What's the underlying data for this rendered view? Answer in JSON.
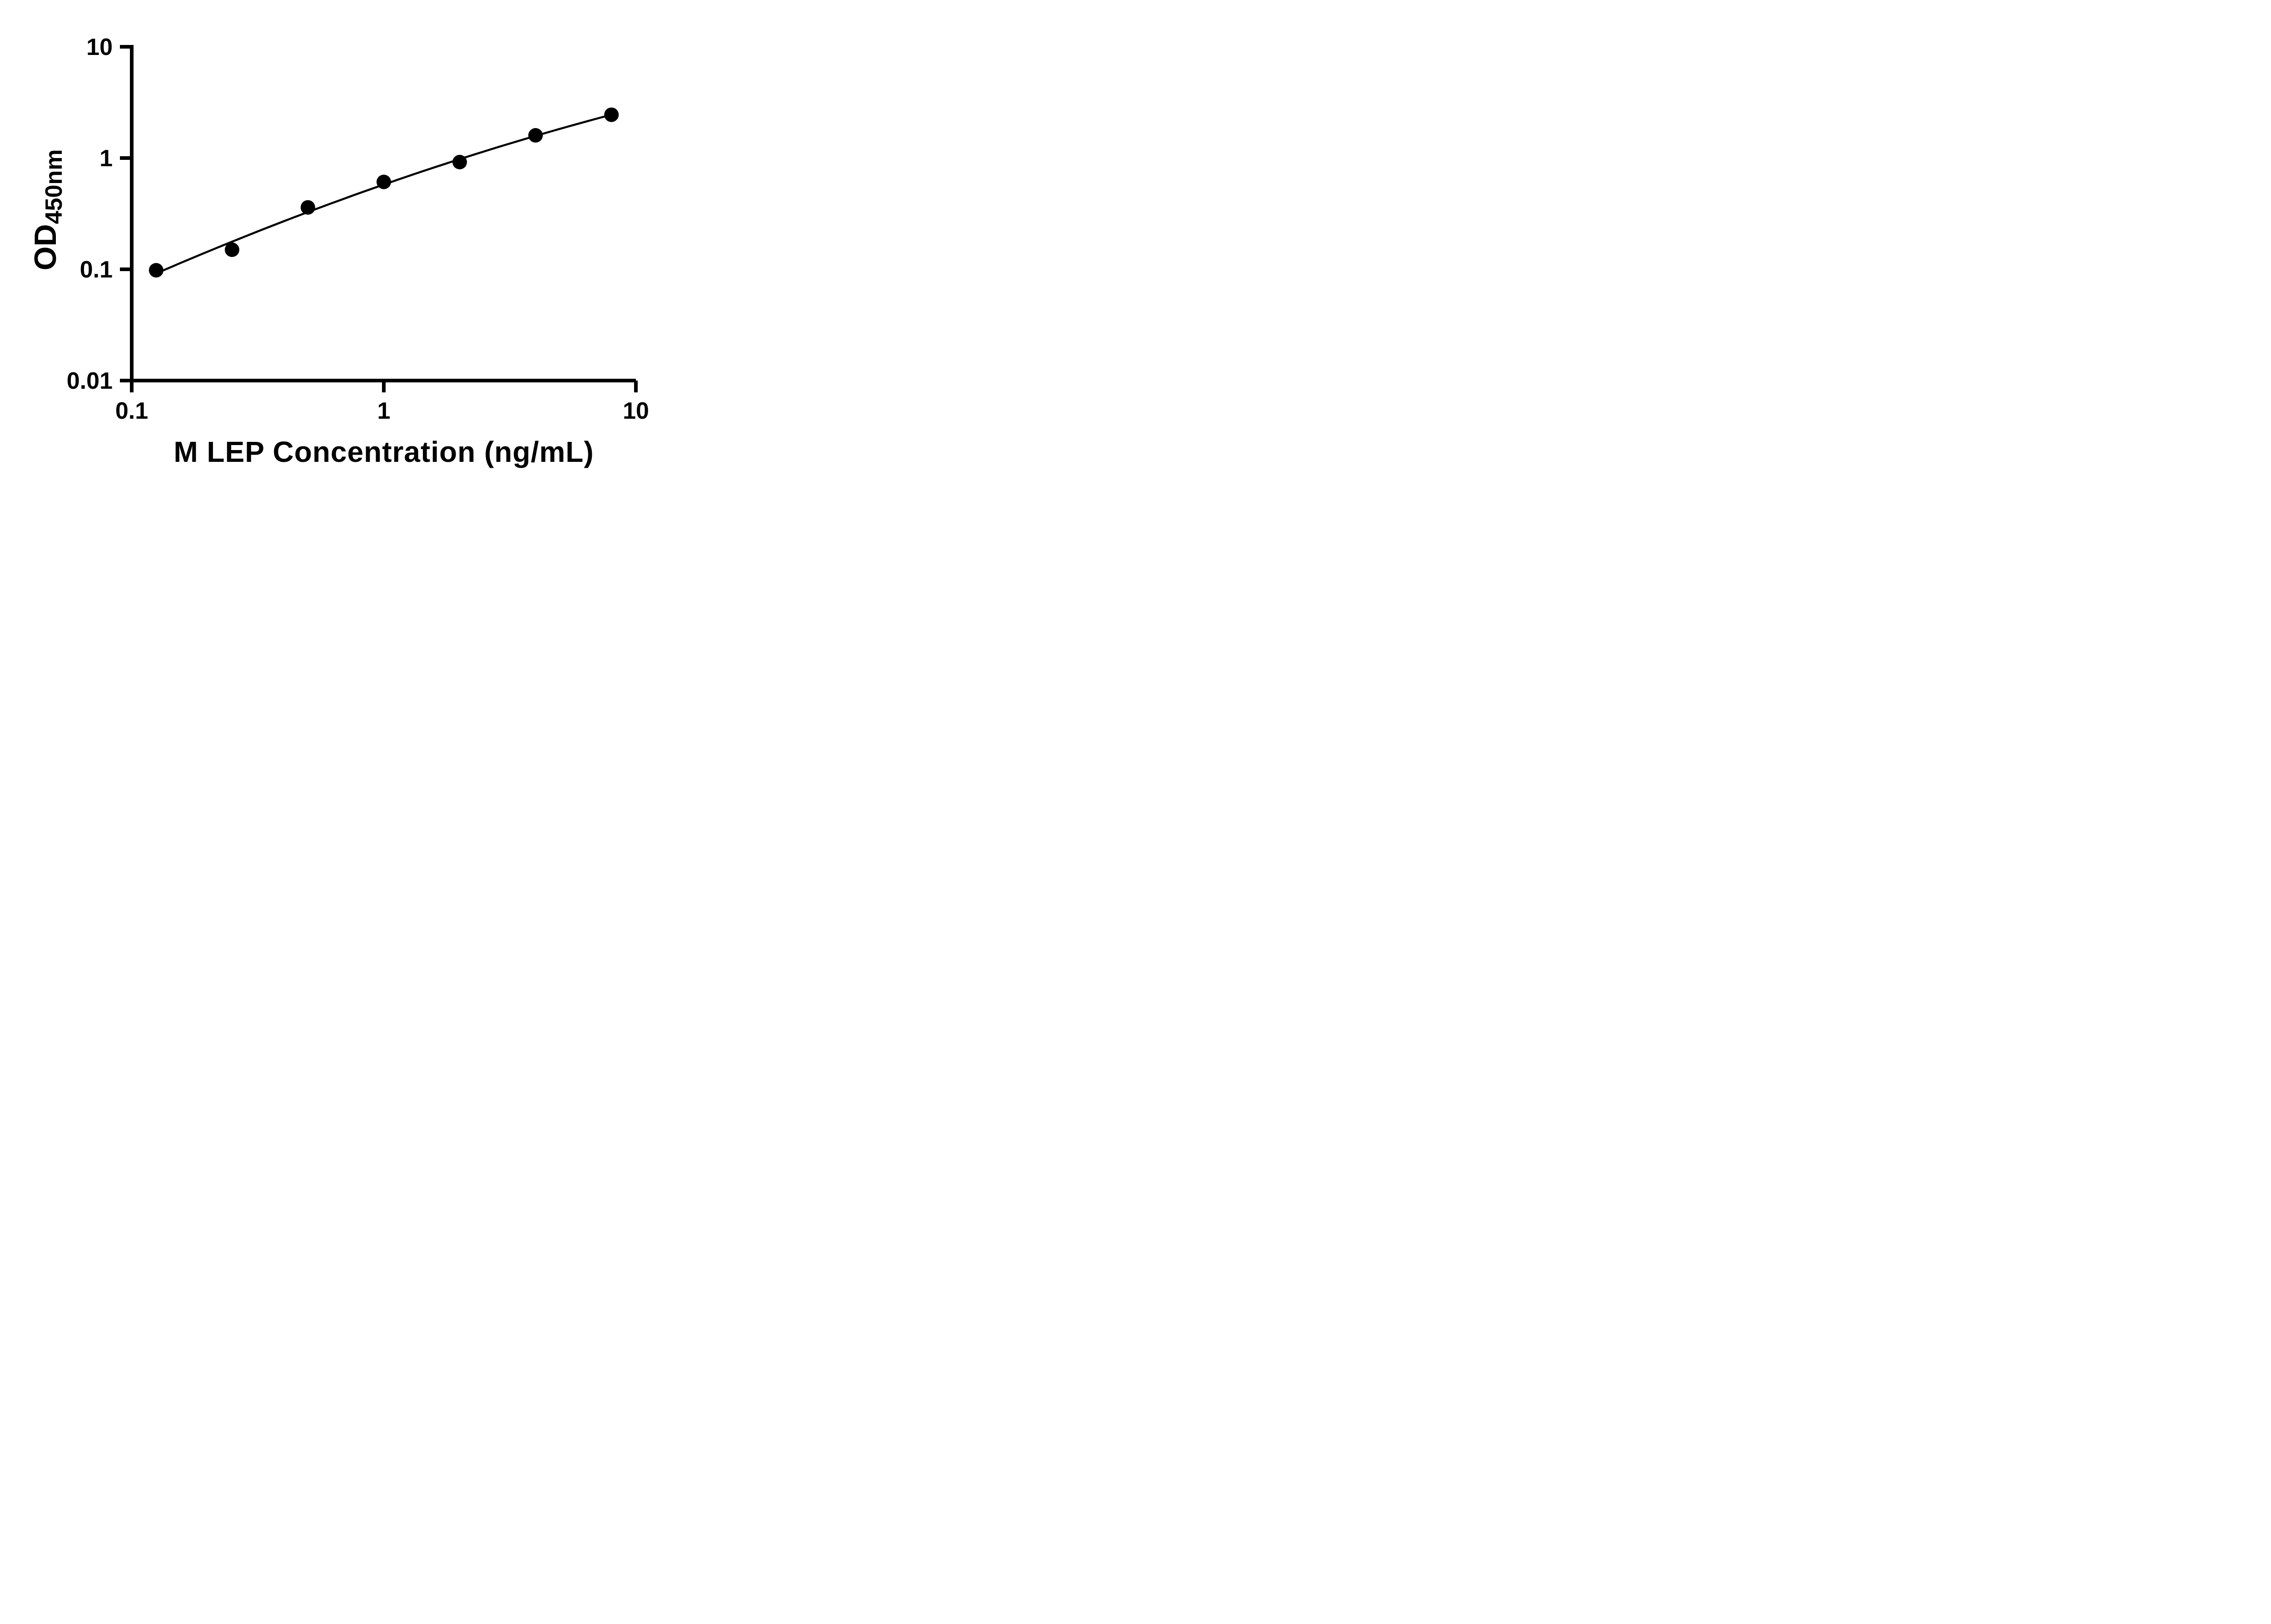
{
  "chart_data": {
    "type": "scatter",
    "subtype": "standard-curve",
    "title": "",
    "xlabel": "M LEP Concentration (ng/mL)",
    "ylabel": "OD450nm",
    "ylabel_main": "OD",
    "ylabel_sub": "450nm",
    "x_scale": "log10",
    "y_scale": "log10",
    "xlim": [
      0.1,
      10
    ],
    "ylim": [
      0.01,
      10
    ],
    "x_ticks": [
      0.1,
      1,
      10
    ],
    "x_tick_labels": [
      "0.1",
      "1",
      "10"
    ],
    "y_ticks": [
      10,
      1,
      0.1,
      0.01
    ],
    "y_tick_labels": [
      "10",
      "1",
      "0.1",
      "0.01"
    ],
    "grid": false,
    "legend": "none",
    "color": "#000000",
    "background": "#ffffff",
    "marker": "filled-circle",
    "fit_line": true,
    "points": [
      {
        "x": 0.125,
        "y": 0.098
      },
      {
        "x": 0.25,
        "y": 0.15
      },
      {
        "x": 0.5,
        "y": 0.36
      },
      {
        "x": 1,
        "y": 0.61
      },
      {
        "x": 2,
        "y": 0.92
      },
      {
        "x": 4,
        "y": 1.6
      },
      {
        "x": 8,
        "y": 2.45
      }
    ]
  }
}
